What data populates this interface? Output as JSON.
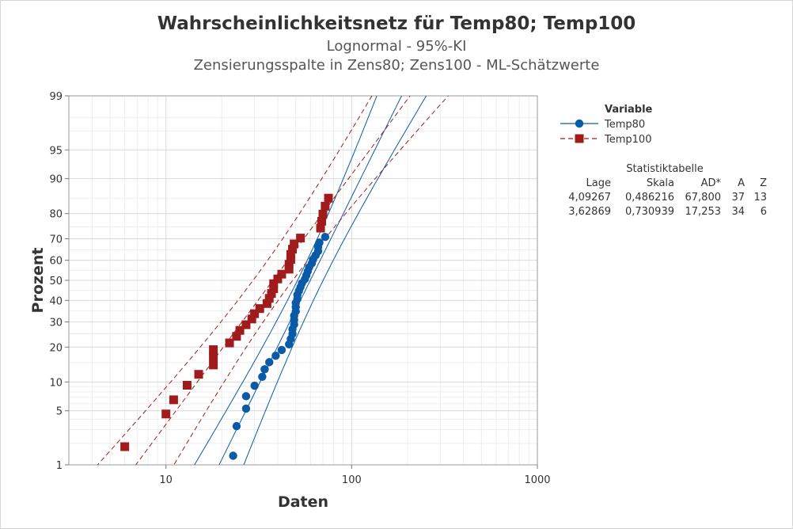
{
  "chart_data": {
    "type": "scatter",
    "title": "Wahrscheinlichkeitsnetz für Temp80; Temp100",
    "subtitle": "Lognormal - 95%-KI",
    "subtitle2": "Zensierungsspalte in Zens80; Zens100 - ML-Schätzwerte",
    "xlabel": "Daten",
    "ylabel": "Prozent",
    "x_scale": "log",
    "y_scale": "normal-probability",
    "xlim": [
      3,
      1000
    ],
    "ylim": [
      1,
      99
    ],
    "x_ticks": [
      "10",
      "100",
      "1000"
    ],
    "y_ticks": [
      "1",
      "5",
      "10",
      "20",
      "30",
      "40",
      "50",
      "60",
      "70",
      "80",
      "90",
      "95",
      "99"
    ],
    "grid": true,
    "legend_title": "Variable",
    "legend_position": "right",
    "series": [
      {
        "name": "Temp80",
        "color": "#0a5aa8",
        "marker": "circle",
        "line": "solid",
        "fit": {
          "location": 4.09267,
          "scale": 0.486216
        },
        "x": [
          23,
          24,
          27,
          27,
          30,
          33,
          34,
          36,
          39,
          42,
          46,
          47,
          48,
          48,
          49,
          49,
          49,
          50,
          50,
          50,
          51,
          51,
          52,
          53,
          54,
          56,
          57,
          58,
          59,
          61,
          62,
          64,
          66,
          66,
          67,
          72
        ],
        "y": [
          1.35,
          3.3,
          5.3,
          7.2,
          9.2,
          11.2,
          13.1,
          15.1,
          17.1,
          19.0,
          21.0,
          23.0,
          25.0,
          26.9,
          28.9,
          30.9,
          32.8,
          34.8,
          36.8,
          38.8,
          40.7,
          42.7,
          44.7,
          46.6,
          48.6,
          50.6,
          52.5,
          54.5,
          56.5,
          58.5,
          60.4,
          62.4,
          64.4,
          66.3,
          68.3,
          70.8
        ]
      },
      {
        "name": "Temp100",
        "color": "#a01c1c",
        "marker": "square",
        "line": "dashed",
        "fit": {
          "location": 3.62869,
          "scale": 0.730939
        },
        "x": [
          6,
          10,
          11,
          13,
          15,
          18,
          18,
          18,
          22,
          24,
          25,
          27,
          29,
          30,
          32,
          35,
          36,
          37,
          38,
          38,
          40,
          42,
          46,
          46,
          47,
          47,
          48,
          49,
          53,
          68,
          69,
          70,
          72,
          75
        ],
        "y": [
          1.8,
          4.6,
          6.6,
          9.3,
          11.8,
          14.3,
          16.7,
          19.1,
          21.5,
          24.0,
          26.4,
          28.8,
          31.3,
          33.7,
          36.1,
          38.5,
          41.0,
          43.4,
          45.8,
          48.3,
          50.7,
          53.1,
          55.6,
          58.0,
          60.4,
          62.8,
          65.3,
          67.7,
          70.3,
          74.5,
          77.2,
          79.8,
          82.5,
          85.0
        ]
      }
    ]
  },
  "stats_table": {
    "title": "Statistiktabelle",
    "headers": [
      "Lage",
      "Skala",
      "AD*",
      "A",
      "Z"
    ],
    "rows": [
      [
        "4,09267",
        "0,486216",
        "67,800",
        "37",
        "13"
      ],
      [
        "3,62869",
        "0,730939",
        "17,253",
        "34",
        "6"
      ]
    ]
  }
}
